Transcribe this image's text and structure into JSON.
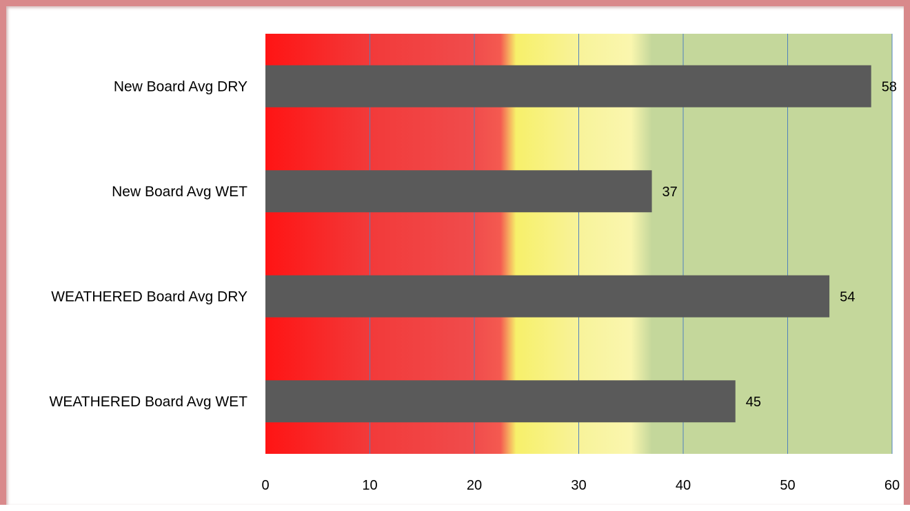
{
  "chart_data": {
    "type": "bar",
    "orientation": "horizontal",
    "title": "",
    "xlabel": "",
    "ylabel": "",
    "categories": [
      "New Board  Avg DRY",
      "New Board  Avg WET",
      "WEATHERED Board Avg DRY",
      "WEATHERED Board Avg WET"
    ],
    "values": [
      58,
      37,
      54,
      45
    ],
    "data_labels": [
      "58",
      "37",
      "54",
      "45"
    ],
    "xlim": [
      0,
      60
    ],
    "x_ticks": [
      0,
      10,
      20,
      30,
      40,
      50,
      60
    ],
    "x_tick_labels": [
      "0",
      "10",
      "20",
      "30",
      "40",
      "50",
      "60"
    ],
    "grid": "vertical",
    "legend": "none",
    "colors": {
      "bar": "#5a5a5a",
      "gridline": "#4f81bd",
      "frame_border": "#d9898b",
      "background_bands": [
        {
          "from": 0,
          "to": 23,
          "color": "#f23a3a",
          "zone": "red"
        },
        {
          "from": 24,
          "to": 35,
          "color": "#f7f27a",
          "zone": "yellow"
        },
        {
          "from": 37,
          "to": 60,
          "color": "#c4d79b",
          "zone": "green"
        }
      ]
    }
  }
}
